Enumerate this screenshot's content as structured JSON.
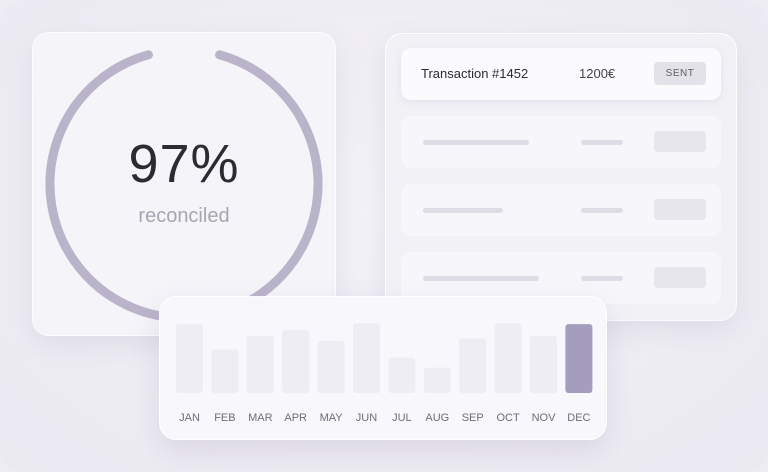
{
  "reconciliation": {
    "percent_label": "97%",
    "percent_value": 0.97,
    "caption": "reconciled"
  },
  "transactions": {
    "rows": [
      {
        "title": "Transaction #1452",
        "amount": "1200€",
        "status": "SENT"
      }
    ],
    "placeholder_row_count": 3
  },
  "colors": {
    "accent": "#a59dbd",
    "ring": "#bab4ca",
    "bar_muted": "#efedf4",
    "text_dark": "#2c2a33",
    "text_muted": "#a8a5b2"
  },
  "chart_data": {
    "type": "bar",
    "categories": [
      "JAN",
      "FEB",
      "MAR",
      "APR",
      "MAY",
      "JUN",
      "JUL",
      "AUG",
      "SEP",
      "OCT",
      "NOV",
      "DEC"
    ],
    "values": [
      82,
      52,
      68,
      75,
      62,
      83,
      42,
      30,
      65,
      83,
      68,
      82
    ],
    "highlight_index": 11,
    "ylim": [
      0,
      100
    ],
    "grid": false,
    "axis_visible": false
  }
}
